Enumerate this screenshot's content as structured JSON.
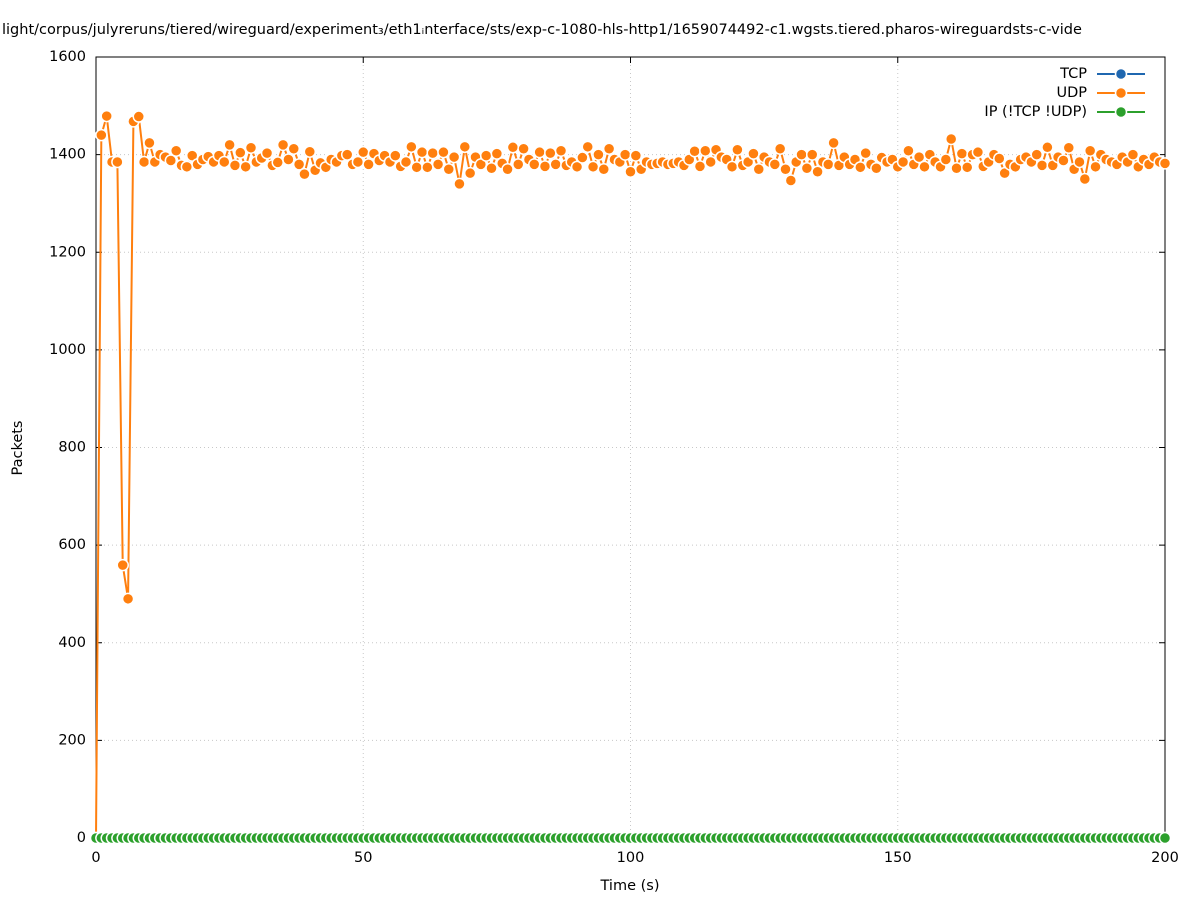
{
  "chart_data": {
    "type": "line",
    "title": "light/corpus/julyreruns/tiered/wireguard/experiment₃/eth1ᵢnterface/sts/exp-c-1080-hls-http1/1659074492-c1.wgsts.tiered.pharos-wireguardsts-c-vide",
    "xlabel": "Time (s)",
    "ylabel": "Packets",
    "xlim": [
      0,
      200
    ],
    "ylim": [
      0,
      1600
    ],
    "xticks": [
      0,
      50,
      100,
      150,
      200
    ],
    "yticks": [
      0,
      200,
      400,
      600,
      800,
      1000,
      1200,
      1400,
      1600
    ],
    "grid": true,
    "legend": "top right",
    "x": [
      0,
      1,
      2,
      3,
      4,
      5,
      6,
      7,
      8,
      9,
      10,
      11,
      12,
      13,
      14,
      15,
      16,
      17,
      18,
      19,
      20,
      21,
      22,
      23,
      24,
      25,
      26,
      27,
      28,
      29,
      30,
      31,
      32,
      33,
      34,
      35,
      36,
      37,
      38,
      39,
      40,
      41,
      42,
      43,
      44,
      45,
      46,
      47,
      48,
      49,
      50,
      51,
      52,
      53,
      54,
      55,
      56,
      57,
      58,
      59,
      60,
      61,
      62,
      63,
      64,
      65,
      66,
      67,
      68,
      69,
      70,
      71,
      72,
      73,
      74,
      75,
      76,
      77,
      78,
      79,
      80,
      81,
      82,
      83,
      84,
      85,
      86,
      87,
      88,
      89,
      90,
      91,
      92,
      93,
      94,
      95,
      96,
      97,
      98,
      99,
      100,
      101,
      102,
      103,
      104,
      105,
      106,
      107,
      108,
      109,
      110,
      111,
      112,
      113,
      114,
      115,
      116,
      117,
      118,
      119,
      120,
      121,
      122,
      123,
      124,
      125,
      126,
      127,
      128,
      129,
      130,
      131,
      132,
      133,
      134,
      135,
      136,
      137,
      138,
      139,
      140,
      141,
      142,
      143,
      144,
      145,
      146,
      147,
      148,
      149,
      150,
      151,
      152,
      153,
      154,
      155,
      156,
      157,
      158,
      159,
      160,
      161,
      162,
      163,
      164,
      165,
      166,
      167,
      168,
      169,
      170,
      171,
      172,
      173,
      174,
      175,
      176,
      177,
      178,
      179,
      180,
      181,
      182,
      183,
      184,
      185,
      186,
      187,
      188,
      189,
      190,
      191,
      192,
      193,
      194,
      195,
      196,
      197,
      198,
      199,
      200
    ],
    "series": [
      {
        "name": "TCP",
        "color": "#1f67b0",
        "values": [
          0,
          0,
          0,
          0,
          0,
          0,
          0,
          0,
          0,
          0,
          0,
          0,
          0,
          0,
          0,
          0,
          0,
          0,
          0,
          0,
          0,
          0,
          0,
          0,
          0,
          0,
          0,
          0,
          0,
          0,
          0,
          0,
          0,
          0,
          0,
          0,
          0,
          0,
          0,
          0,
          0,
          0,
          0,
          0,
          0,
          0,
          0,
          0,
          0,
          0,
          0,
          0,
          0,
          0,
          0,
          0,
          0,
          0,
          0,
          0,
          0,
          0,
          0,
          0,
          0,
          0,
          0,
          0,
          0,
          0,
          0,
          0,
          0,
          0,
          0,
          0,
          0,
          0,
          0,
          0,
          0,
          0,
          0,
          0,
          0,
          0,
          0,
          0,
          0,
          0,
          0,
          0,
          0,
          0,
          0,
          0,
          0,
          0,
          0,
          0,
          0,
          0,
          0,
          0,
          0,
          0,
          0,
          0,
          0,
          0,
          0,
          0,
          0,
          0,
          0,
          0,
          0,
          0,
          0,
          0,
          0,
          0,
          0,
          0,
          0,
          0,
          0,
          0,
          0,
          0,
          0,
          0,
          0,
          0,
          0,
          0,
          0,
          0,
          0,
          0,
          0,
          0,
          0,
          0,
          0,
          0,
          0,
          0,
          0,
          0,
          0,
          0,
          0,
          0,
          0,
          0,
          0,
          0,
          0,
          0,
          0,
          0,
          0,
          0,
          0,
          0,
          0,
          0,
          0,
          0,
          0,
          0,
          0,
          0,
          0,
          0,
          0,
          0,
          0,
          0,
          0,
          0,
          0,
          0,
          0,
          0,
          0,
          0,
          0,
          0,
          0,
          0,
          0,
          0,
          0,
          0,
          0,
          0,
          0,
          0,
          0
        ]
      },
      {
        "name": "UDP",
        "color": "#ff7f0e",
        "values": [
          0,
          1440,
          1479,
          1385,
          1385,
          559,
          490,
          1468,
          1478,
          1385,
          1424,
          1385,
          1400,
          1395,
          1388,
          1408,
          1378,
          1375,
          1398,
          1380,
          1390,
          1396,
          1385,
          1398,
          1385,
          1420,
          1378,
          1404,
          1375,
          1414,
          1385,
          1393,
          1403,
          1378,
          1384,
          1420,
          1390,
          1412,
          1380,
          1360,
          1406,
          1368,
          1383,
          1374,
          1390,
          1385,
          1398,
          1400,
          1380,
          1385,
          1405,
          1380,
          1402,
          1388,
          1398,
          1385,
          1398,
          1376,
          1385,
          1416,
          1374,
          1405,
          1374,
          1403,
          1380,
          1405,
          1370,
          1395,
          1340,
          1416,
          1362,
          1395,
          1380,
          1398,
          1372,
          1402,
          1382,
          1370,
          1415,
          1380,
          1412,
          1390,
          1380,
          1405,
          1376,
          1403,
          1380,
          1408,
          1378,
          1385,
          1375,
          1394,
          1416,
          1375,
          1400,
          1370,
          1412,
          1390,
          1385,
          1400,
          1365,
          1398,
          1370,
          1385,
          1380,
          1382,
          1385,
          1380,
          1382,
          1385,
          1378,
          1390,
          1407,
          1376,
          1408,
          1385,
          1410,
          1395,
          1390,
          1375,
          1410,
          1378,
          1385,
          1402,
          1370,
          1395,
          1385,
          1380,
          1412,
          1370,
          1347,
          1385,
          1400,
          1372,
          1400,
          1365,
          1385,
          1380,
          1424,
          1378,
          1395,
          1380,
          1390,
          1374,
          1403,
          1380,
          1372,
          1394,
          1385,
          1390,
          1375,
          1385,
          1408,
          1380,
          1395,
          1375,
          1400,
          1385,
          1375,
          1390,
          1432,
          1372,
          1402,
          1374,
          1400,
          1405,
          1376,
          1385,
          1400,
          1392,
          1362,
          1380,
          1375,
          1390,
          1395,
          1385,
          1400,
          1378,
          1415,
          1378,
          1395,
          1388,
          1414,
          1370,
          1385,
          1350,
          1408,
          1375,
          1400,
          1390,
          1385,
          1380,
          1395,
          1385,
          1400,
          1375,
          1390,
          1380,
          1395,
          1385,
          1382
        ]
      },
      {
        "name": "IP (!TCP  !UDP)",
        "color": "#2ca02c",
        "values": [
          0,
          0,
          0,
          0,
          0,
          0,
          0,
          0,
          0,
          0,
          0,
          0,
          0,
          0,
          0,
          0,
          0,
          0,
          0,
          0,
          0,
          0,
          0,
          0,
          0,
          0,
          0,
          0,
          0,
          0,
          0,
          0,
          0,
          0,
          0,
          0,
          0,
          0,
          0,
          0,
          0,
          0,
          0,
          0,
          0,
          0,
          0,
          0,
          0,
          0,
          0,
          0,
          0,
          0,
          0,
          0,
          0,
          0,
          0,
          0,
          0,
          0,
          0,
          0,
          0,
          0,
          0,
          0,
          0,
          0,
          0,
          0,
          0,
          0,
          0,
          0,
          0,
          0,
          0,
          0,
          0,
          0,
          0,
          0,
          0,
          0,
          0,
          0,
          0,
          0,
          0,
          0,
          0,
          0,
          0,
          0,
          0,
          0,
          0,
          0,
          0,
          0,
          0,
          0,
          0,
          0,
          0,
          0,
          0,
          0,
          0,
          0,
          0,
          0,
          0,
          0,
          0,
          0,
          0,
          0,
          0,
          0,
          0,
          0,
          0,
          0,
          0,
          0,
          0,
          0,
          0,
          0,
          0,
          0,
          0,
          0,
          0,
          0,
          0,
          0,
          0,
          0,
          0,
          0,
          0,
          0,
          0,
          0,
          0,
          0,
          0,
          0,
          0,
          0,
          0,
          0,
          0,
          0,
          0,
          0,
          0,
          0,
          0,
          0,
          0,
          0,
          0,
          0,
          0,
          0,
          0,
          0,
          0,
          0,
          0,
          0,
          0,
          0,
          0,
          0,
          0,
          0,
          0,
          0,
          0,
          0,
          0,
          0,
          0,
          0,
          0,
          0,
          0,
          0,
          0,
          0,
          0,
          0,
          0,
          0,
          0
        ]
      }
    ]
  }
}
